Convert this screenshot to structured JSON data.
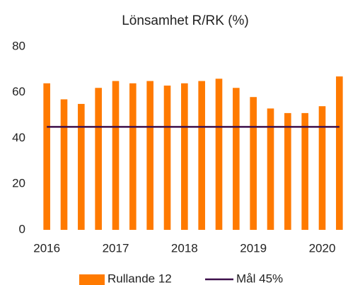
{
  "chart_data": {
    "type": "bar",
    "title": "Lönsamhet R/RK (%)",
    "categories": [
      "2016",
      null,
      null,
      null,
      "2017",
      null,
      null,
      null,
      "2018",
      null,
      null,
      null,
      "2019",
      null,
      null,
      null,
      "2020",
      null
    ],
    "series": [
      {
        "name": "Rullande 12",
        "type": "bar",
        "color": "#ff7a00",
        "values": [
          64,
          57,
          55,
          62,
          65,
          64,
          65,
          63,
          64,
          65,
          66,
          62,
          58,
          53,
          51,
          51,
          54,
          67
        ]
      },
      {
        "name": "Mål 45%",
        "type": "line",
        "color": "#3d0f4a",
        "values": [
          45,
          45,
          45,
          45,
          45,
          45,
          45,
          45,
          45,
          45,
          45,
          45,
          45,
          45,
          45,
          45,
          45,
          45
        ]
      }
    ],
    "ylim": [
      0,
      80
    ],
    "yticks": [
      0,
      20,
      40,
      60,
      80
    ],
    "grid": false
  }
}
